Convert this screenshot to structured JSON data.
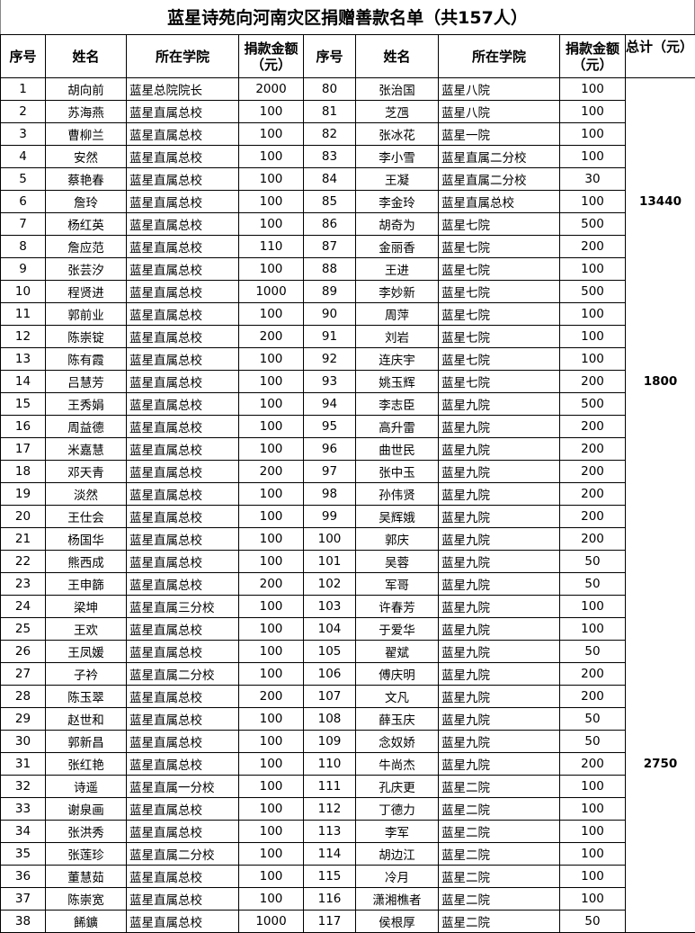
{
  "title": "蓝星诗苑向河南灾区捐赠善款名单（共157人）",
  "headers": {
    "no": "序号",
    "name": "姓名",
    "college": "所在学院",
    "amount_line1": "捐款金额",
    "amount_line2": "（元）",
    "total": "总计（元）"
  },
  "rows": [
    {
      "no": "1",
      "name": "胡向前",
      "college": "蓝星总院院长",
      "amount": "2000",
      "no2": "80",
      "name2": "张治国",
      "college2": "蓝星八院",
      "amount2": "100",
      "total": ""
    },
    {
      "no": "2",
      "name": "苏海燕",
      "college": "蓝星直属总校",
      "amount": "100",
      "no2": "81",
      "name2": "芝乪",
      "college2": "蓝星八院",
      "amount2": "100",
      "total": ""
    },
    {
      "no": "3",
      "name": "曹柳兰",
      "college": "蓝星直属总校",
      "amount": "100",
      "no2": "82",
      "name2": "张冰花",
      "college2": "蓝星一院",
      "amount2": "100",
      "total": ""
    },
    {
      "no": "4",
      "name": "安然",
      "college": "蓝星直属总校",
      "amount": "100",
      "no2": "83",
      "name2": "李小雪",
      "college2": "蓝星直属二分校",
      "amount2": "100",
      "total": ""
    },
    {
      "no": "5",
      "name": "蔡艳春",
      "college": "蓝星直属总校",
      "amount": "100",
      "no2": "84",
      "name2": "王凝",
      "college2": "蓝星直属二分校",
      "amount2": "30",
      "total": ""
    },
    {
      "no": "6",
      "name": "詹玲",
      "college": "蓝星直属总校",
      "amount": "100",
      "no2": "85",
      "name2": "李金玲",
      "college2": "蓝星直属总校",
      "amount2": "100",
      "total": "13440"
    },
    {
      "no": "7",
      "name": "杨红英",
      "college": "蓝星直属总校",
      "amount": "100",
      "no2": "86",
      "name2": "胡奇为",
      "college2": "蓝星七院",
      "amount2": "500",
      "total": ""
    },
    {
      "no": "8",
      "name": "詹应范",
      "college": "蓝星直属总校",
      "amount": "110",
      "no2": "87",
      "name2": "金丽香",
      "college2": "蓝星七院",
      "amount2": "200",
      "total": ""
    },
    {
      "no": "9",
      "name": "张芸汐",
      "college": "蓝星直属总校",
      "amount": "100",
      "no2": "88",
      "name2": "王进",
      "college2": "蓝星七院",
      "amount2": "100",
      "total": ""
    },
    {
      "no": "10",
      "name": "程贤进",
      "college": "蓝星直属总校",
      "amount": "1000",
      "no2": "89",
      "name2": "李妙新",
      "college2": "蓝星七院",
      "amount2": "500",
      "total": ""
    },
    {
      "no": "11",
      "name": "郭前业",
      "college": "蓝星直属总校",
      "amount": "100",
      "no2": "90",
      "name2": "周萍",
      "college2": "蓝星七院",
      "amount2": "100",
      "total": ""
    },
    {
      "no": "12",
      "name": "陈崇锭",
      "college": "蓝星直属总校",
      "amount": "200",
      "no2": "91",
      "name2": "刘岩",
      "college2": "蓝星七院",
      "amount2": "100",
      "total": ""
    },
    {
      "no": "13",
      "name": "陈有霞",
      "college": "蓝星直属总校",
      "amount": "100",
      "no2": "92",
      "name2": "连庆宇",
      "college2": "蓝星七院",
      "amount2": "100",
      "total": ""
    },
    {
      "no": "14",
      "name": "吕慧芳",
      "college": "蓝星直属总校",
      "amount": "100",
      "no2": "93",
      "name2": "姚玉辉",
      "college2": "蓝星七院",
      "amount2": "200",
      "total": "1800"
    },
    {
      "no": "15",
      "name": "王秀娟",
      "college": "蓝星直属总校",
      "amount": "100",
      "no2": "94",
      "name2": "李志臣",
      "college2": "蓝星九院",
      "amount2": "500",
      "total": ""
    },
    {
      "no": "16",
      "name": "周益德",
      "college": "蓝星直属总校",
      "amount": "100",
      "no2": "95",
      "name2": "高升雷",
      "college2": "蓝星九院",
      "amount2": "200",
      "total": ""
    },
    {
      "no": "17",
      "name": "米嘉慧",
      "college": "蓝星直属总校",
      "amount": "100",
      "no2": "96",
      "name2": "曲世民",
      "college2": "蓝星九院",
      "amount2": "200",
      "total": ""
    },
    {
      "no": "18",
      "name": "邓天青",
      "college": "蓝星直属总校",
      "amount": "200",
      "no2": "97",
      "name2": "张中玉",
      "college2": "蓝星九院",
      "amount2": "200",
      "total": ""
    },
    {
      "no": "19",
      "name": "淡然",
      "college": "蓝星直属总校",
      "amount": "100",
      "no2": "98",
      "name2": "孙伟贤",
      "college2": "蓝星九院",
      "amount2": "200",
      "total": ""
    },
    {
      "no": "20",
      "name": "王仕会",
      "college": "蓝星直属总校",
      "amount": "100",
      "no2": "99",
      "name2": "吴辉娥",
      "college2": "蓝星九院",
      "amount2": "200",
      "total": ""
    },
    {
      "no": "21",
      "name": "杨国华",
      "college": "蓝星直属总校",
      "amount": "100",
      "no2": "100",
      "name2": "郭庆",
      "college2": "蓝星九院",
      "amount2": "200",
      "total": ""
    },
    {
      "no": "22",
      "name": "熊西成",
      "college": "蓝星直属总校",
      "amount": "100",
      "no2": "101",
      "name2": "吴蓉",
      "college2": "蓝星九院",
      "amount2": "50",
      "total": ""
    },
    {
      "no": "23",
      "name": "王申篩",
      "college": "蓝星直属总校",
      "amount": "200",
      "no2": "102",
      "name2": "军哥",
      "college2": "蓝星九院",
      "amount2": "50",
      "total": ""
    },
    {
      "no": "24",
      "name": "梁坤",
      "college": "蓝星直属三分校",
      "amount": "100",
      "no2": "103",
      "name2": "许春芳",
      "college2": "蓝星九院",
      "amount2": "100",
      "total": ""
    },
    {
      "no": "25",
      "name": "王欢",
      "college": "蓝星直属总校",
      "amount": "100",
      "no2": "104",
      "name2": "于爱华",
      "college2": "蓝星九院",
      "amount2": "100",
      "total": ""
    },
    {
      "no": "26",
      "name": "王凤媛",
      "college": "蓝星直属总校",
      "amount": "100",
      "no2": "105",
      "name2": "翟斌",
      "college2": "蓝星九院",
      "amount2": "50",
      "total": ""
    },
    {
      "no": "27",
      "name": "子衿",
      "college": "蓝星直属二分校",
      "amount": "100",
      "no2": "106",
      "name2": "傅庆明",
      "college2": "蓝星九院",
      "amount2": "200",
      "total": ""
    },
    {
      "no": "28",
      "name": "陈玉翠",
      "college": "蓝星直属总校",
      "amount": "200",
      "no2": "107",
      "name2": "文凡",
      "college2": "蓝星九院",
      "amount2": "200",
      "total": ""
    },
    {
      "no": "29",
      "name": "赵世和",
      "college": "蓝星直属总校",
      "amount": "100",
      "no2": "108",
      "name2": "薛玉庆",
      "college2": "蓝星九院",
      "amount2": "50",
      "total": ""
    },
    {
      "no": "30",
      "name": "郭新昌",
      "college": "蓝星直属总校",
      "amount": "100",
      "no2": "109",
      "name2": "念奴娇",
      "college2": "蓝星九院",
      "amount2": "50",
      "total": ""
    },
    {
      "no": "31",
      "name": "张红艳",
      "college": "蓝星直属总校",
      "amount": "100",
      "no2": "110",
      "name2": "牛尚杰",
      "college2": "蓝星九院",
      "amount2": "200",
      "total": "2750"
    },
    {
      "no": "32",
      "name": "诗遥",
      "college": "蓝星直属一分校",
      "amount": "100",
      "no2": "111",
      "name2": "孔庆更",
      "college2": "蓝星二院",
      "amount2": "100",
      "total": ""
    },
    {
      "no": "33",
      "name": "谢泉画",
      "college": "蓝星直属总校",
      "amount": "100",
      "no2": "112",
      "name2": "丁德力",
      "college2": "蓝星二院",
      "amount2": "100",
      "total": ""
    },
    {
      "no": "34",
      "name": "张洪秀",
      "college": "蓝星直属总校",
      "amount": "100",
      "no2": "113",
      "name2": "李军",
      "college2": "蓝星二院",
      "amount2": "100",
      "total": ""
    },
    {
      "no": "35",
      "name": "张莲珍",
      "college": "蓝星直属二分校",
      "amount": "100",
      "no2": "114",
      "name2": "胡边江",
      "college2": "蓝星二院",
      "amount2": "100",
      "total": ""
    },
    {
      "no": "36",
      "name": "董慧茹",
      "college": "蓝星直属总校",
      "amount": "100",
      "no2": "115",
      "name2": "冷月",
      "college2": "蓝星二院",
      "amount2": "100",
      "total": ""
    },
    {
      "no": "37",
      "name": "陈崇宽",
      "college": "蓝星直属总校",
      "amount": "100",
      "no2": "116",
      "name2": "潇湘樵者",
      "college2": "蓝星二院",
      "amount2": "100",
      "total": ""
    },
    {
      "no": "38",
      "name": "餙鑛",
      "college": "蓝星直属总校",
      "amount": "1000",
      "no2": "117",
      "name2": "侯根厚",
      "college2": "蓝星二院",
      "amount2": "50",
      "total": ""
    }
  ]
}
